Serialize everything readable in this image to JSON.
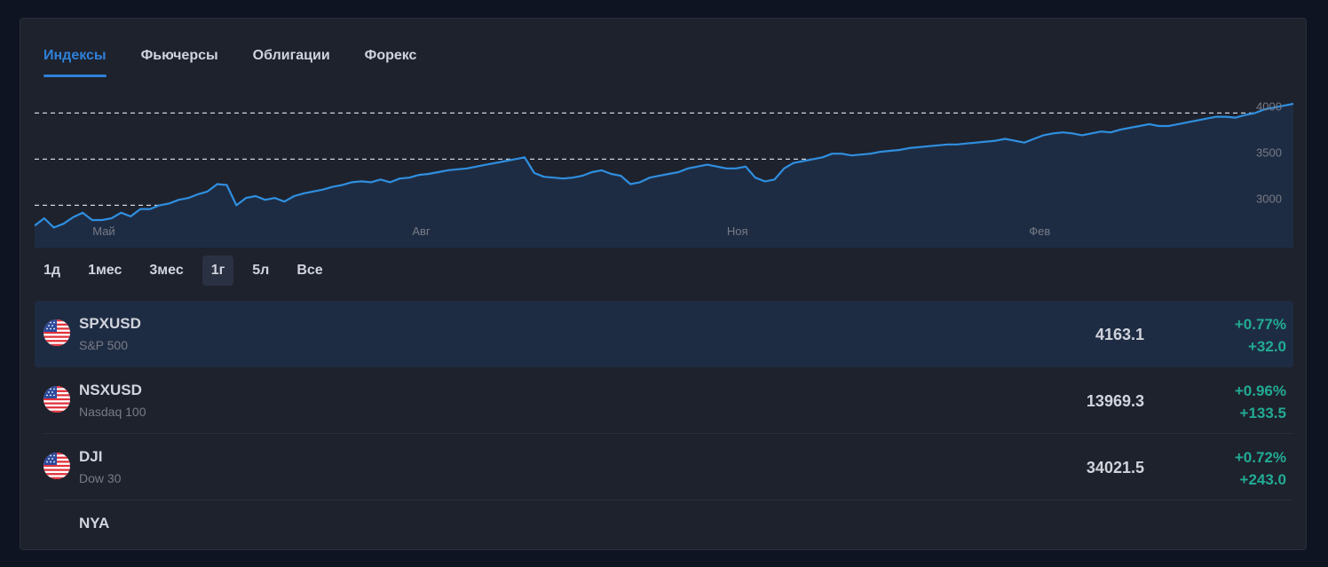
{
  "tabs": [
    {
      "label": "Индексы",
      "active": true
    },
    {
      "label": "Фьючерсы",
      "active": false
    },
    {
      "label": "Облигации",
      "active": false
    },
    {
      "label": "Форекс",
      "active": false
    }
  ],
  "chart_data": {
    "type": "area",
    "x_labels": [
      "Май",
      "Авг",
      "Ноя",
      "Фев"
    ],
    "y_ticks": [
      3000,
      3500,
      4000
    ],
    "ylim": [
      2600,
      4100
    ],
    "grid": "dashed horizontal",
    "line_color": "#2f8fe0",
    "fill_color": "#1e2c43",
    "series": [
      {
        "values": [
          2780,
          2860,
          2760,
          2800,
          2870,
          2920,
          2840,
          2840,
          2860,
          2920,
          2880,
          2960,
          2960,
          3000,
          3020,
          3060,
          3080,
          3120,
          3150,
          3230,
          3220,
          3000,
          3080,
          3100,
          3060,
          3080,
          3040,
          3100,
          3130,
          3150,
          3170,
          3200,
          3220,
          3250,
          3260,
          3250,
          3280,
          3250,
          3290,
          3300,
          3330,
          3340,
          3360,
          3380,
          3390,
          3400,
          3420,
          3440,
          3460,
          3480,
          3500,
          3520,
          3350,
          3310,
          3300,
          3290,
          3300,
          3320,
          3360,
          3380,
          3340,
          3320,
          3230,
          3250,
          3300,
          3320,
          3340,
          3360,
          3400,
          3420,
          3440,
          3420,
          3400,
          3400,
          3420,
          3300,
          3260,
          3280,
          3400,
          3460,
          3480,
          3500,
          3520,
          3560,
          3560,
          3540,
          3550,
          3560,
          3580,
          3590,
          3600,
          3620,
          3630,
          3640,
          3650,
          3660,
          3660,
          3670,
          3680,
          3690,
          3700,
          3720,
          3700,
          3680,
          3720,
          3760,
          3780,
          3790,
          3780,
          3760,
          3780,
          3800,
          3790,
          3820,
          3840,
          3860,
          3880,
          3860,
          3860,
          3880,
          3900,
          3920,
          3940,
          3960,
          3960,
          3950,
          3980,
          4000,
          4040,
          4060,
          4080,
          4100
        ]
      }
    ]
  },
  "ranges": [
    {
      "label": "1д",
      "active": false
    },
    {
      "label": "1мес",
      "active": false
    },
    {
      "label": "3мес",
      "active": false
    },
    {
      "label": "1г",
      "active": true
    },
    {
      "label": "5л",
      "active": false
    },
    {
      "label": "Все",
      "active": false
    }
  ],
  "rows": [
    {
      "symbol": "SPXUSD",
      "name": "S&P 500",
      "price": "4163.1",
      "pct": "+0.77%",
      "chg": "+32.0",
      "selected": true
    },
    {
      "symbol": "NSXUSD",
      "name": "Nasdaq 100",
      "price": "13969.3",
      "pct": "+0.96%",
      "chg": "+133.5",
      "selected": false
    },
    {
      "symbol": "DJI",
      "name": "Dow 30",
      "price": "34021.5",
      "pct": "+0.72%",
      "chg": "+243.0",
      "selected": false
    },
    {
      "symbol": "NYA",
      "name": "",
      "price": "",
      "pct": "",
      "chg": "",
      "selected": false
    }
  ],
  "flag_icon": "us-flag-icon"
}
